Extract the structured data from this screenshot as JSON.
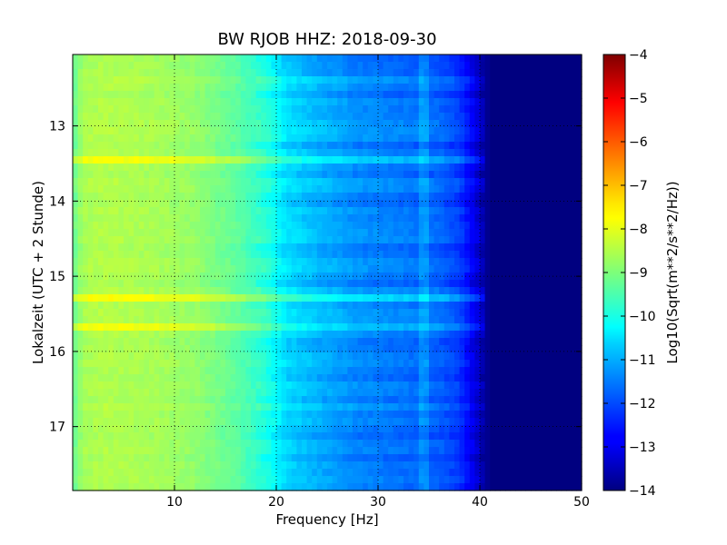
{
  "chart_data": {
    "type": "heatmap",
    "title": "BW RJOB HHZ: 2018-09-30",
    "xlabel": "Frequency [Hz]",
    "ylabel": "Lokalzeit (UTC + 2 Stunde)",
    "xlim": [
      0,
      50
    ],
    "ylim": [
      12.05,
      17.85
    ],
    "y_inverted": true,
    "x_ticks": [
      10,
      20,
      30,
      40,
      50
    ],
    "x_tick_labels": [
      "10",
      "20",
      "30",
      "40",
      "50"
    ],
    "y_ticks": [
      13,
      14,
      15,
      16,
      17
    ],
    "y_tick_labels": [
      "13",
      "14",
      "15",
      "16",
      "17"
    ],
    "grid": true,
    "colorscale": "jet",
    "colorbar": {
      "label": "Log10(Sqrt(m**2/s**2/Hz))",
      "range": [
        -14,
        -4
      ],
      "ticks": [
        -4,
        -5,
        -6,
        -7,
        -8,
        -9,
        -10,
        -11,
        -12,
        -13,
        -14
      ],
      "tick_labels": [
        "−4",
        "−5",
        "−6",
        "−7",
        "−8",
        "−9",
        "−10",
        "−11",
        "−12",
        "−13",
        "−14"
      ]
    },
    "spectrum_profile": {
      "frequency_hz": [
        0,
        1,
        3,
        8,
        12,
        16,
        19,
        21,
        24,
        28,
        32,
        36,
        38,
        39.5,
        41,
        45,
        50
      ],
      "log_amplitude": [
        -9.3,
        -8.6,
        -8.5,
        -8.6,
        -8.8,
        -9.3,
        -9.9,
        -10.6,
        -11.0,
        -11.4,
        -11.6,
        -11.8,
        -12.2,
        -13.0,
        -14.0,
        -14.0,
        -14.0
      ]
    },
    "features": {
      "dead_band_start_hz": 40.5,
      "tonal_line_hz": 34.5,
      "broadband_events_hours": [
        13.48,
        15.3,
        15.7
      ]
    }
  }
}
